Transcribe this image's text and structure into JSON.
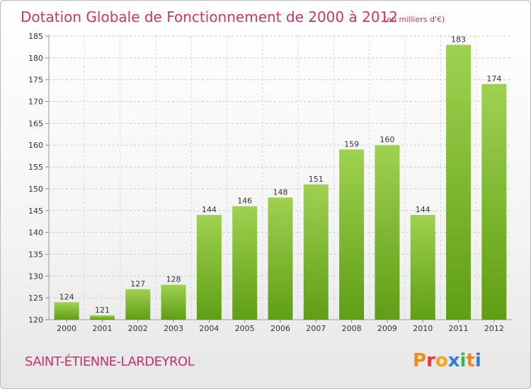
{
  "header": {
    "title": "Dotation Globale de Fonctionnement de 2000 à 2012",
    "unit": "(en milliers d'€)"
  },
  "footer": {
    "commune": "SAINT-ÉTIENNE-LARDEYROL",
    "brand": "Proxiti"
  },
  "colors": {
    "title": "#d0346a",
    "bar_light": "#9fd150",
    "bar_dark": "#5f9e16",
    "logo_letters": [
      "#f08a1c",
      "#e8343c",
      "#f0a51c",
      "#2f7fd6",
      "#39b54a",
      "#f08a1c",
      "#2f7fd6"
    ]
  },
  "chart_data": {
    "type": "bar",
    "title": "Dotation Globale de Fonctionnement de 2000 à 2012",
    "subtitle": "(en milliers d'€)",
    "categories": [
      "2000",
      "2001",
      "2002",
      "2003",
      "2004",
      "2005",
      "2006",
      "2007",
      "2008",
      "2009",
      "2010",
      "2011",
      "2012"
    ],
    "values": [
      124,
      121,
      127,
      128,
      144,
      146,
      148,
      151,
      159,
      160,
      144,
      183,
      174
    ],
    "ylim": [
      120,
      185
    ],
    "yticks": [
      120,
      125,
      130,
      135,
      140,
      145,
      150,
      155,
      160,
      165,
      170,
      175,
      180,
      185
    ],
    "grid": true,
    "xlabel": "",
    "ylabel": ""
  }
}
